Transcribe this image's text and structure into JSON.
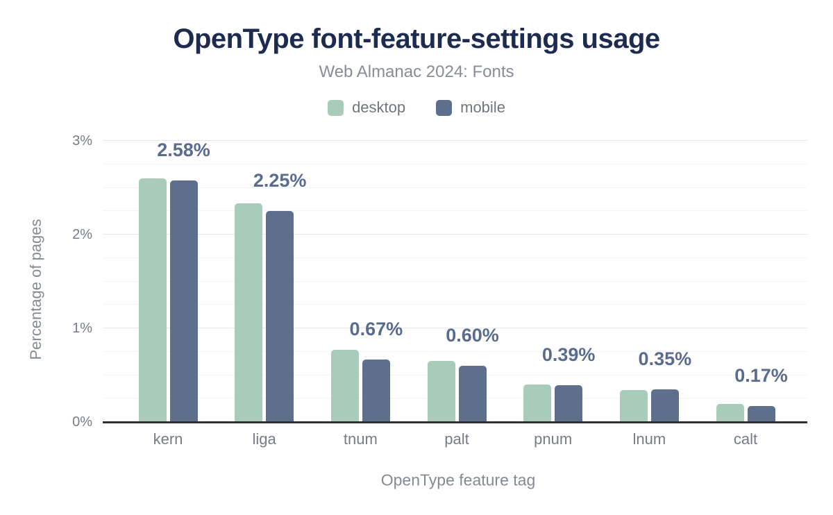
{
  "chart_data": {
    "type": "bar",
    "title": "OpenType font-feature-settings usage",
    "subtitle": "Web Almanac 2024: Fonts",
    "xlabel": "OpenType feature tag",
    "ylabel": "Percentage of pages",
    "categories": [
      "kern",
      "liga",
      "tnum",
      "palt",
      "pnum",
      "lnum",
      "calt"
    ],
    "series": [
      {
        "name": "desktop",
        "color": "#a9cbba",
        "values": [
          2.6,
          2.33,
          0.77,
          0.65,
          0.4,
          0.34,
          0.19
        ]
      },
      {
        "name": "mobile",
        "color": "#5e6f8d",
        "values": [
          2.58,
          2.25,
          0.67,
          0.6,
          0.39,
          0.35,
          0.17
        ]
      }
    ],
    "data_labels": [
      "2.58%",
      "2.25%",
      "0.67%",
      "0.60%",
      "0.39%",
      "0.35%",
      "0.17%"
    ],
    "data_labels_on_series": "mobile",
    "y_ticks": [
      {
        "value": 0,
        "label": "0%"
      },
      {
        "value": 1,
        "label": "1%"
      },
      {
        "value": 2,
        "label": "2%"
      },
      {
        "value": 3,
        "label": "3%"
      }
    ],
    "ylim": [
      0,
      3
    ],
    "minor_grid_step": 0.25,
    "grid": true,
    "legend_position": "top",
    "colors": {
      "title": "#1c2b4f",
      "subtitle": "#878d98",
      "legend_text": "#6f7580",
      "data_label": "#5a6c8e",
      "axis_line": "#303034",
      "tick_label": "#767c87",
      "axis_title": "#848a94",
      "major_grid": "#e6e8ec",
      "minor_grid": "#f3f4f6",
      "background": "#ffffff"
    }
  }
}
